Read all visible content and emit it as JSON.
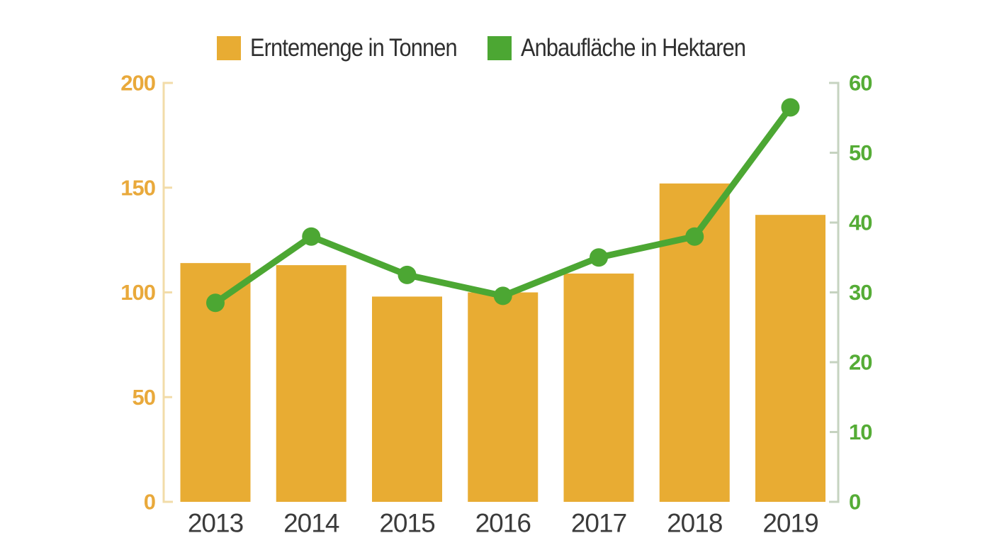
{
  "legend": {
    "items": [
      {
        "label": "Erntemenge in Tonnen",
        "color": "#E8AC33"
      },
      {
        "label": "Anbaufläche in Hektaren",
        "color": "#4CA733"
      }
    ]
  },
  "chart_data": {
    "type": "bar",
    "subtype": "bar+line dual axis",
    "categories": [
      "2013",
      "2014",
      "2015",
      "2016",
      "2017",
      "2018",
      "2019"
    ],
    "series": [
      {
        "name": "Erntemenge in Tonnen",
        "type": "bar",
        "axis": "left",
        "color": "#E8AC33",
        "values": [
          114,
          113,
          98,
          100,
          109,
          152,
          137
        ]
      },
      {
        "name": "Anbaufläche in Hektaren",
        "type": "line",
        "axis": "right",
        "color": "#4CA733",
        "values": [
          28.5,
          38,
          32.5,
          29.5,
          35,
          38,
          56.5
        ]
      }
    ],
    "left_axis": {
      "ticks": [
        0,
        50,
        100,
        150,
        200
      ],
      "range": [
        0,
        200
      ],
      "label_color": "#E9A93B",
      "line_color": "#F2DCA9"
    },
    "right_axis": {
      "ticks": [
        0,
        10,
        20,
        30,
        40,
        50,
        60
      ],
      "range": [
        0,
        60
      ],
      "label_color": "#55AC36",
      "line_color": "#C6D3C0"
    },
    "x_axis": {
      "label_color": "#3B3B3B"
    },
    "grid": false,
    "legend_position": "top",
    "title": ""
  }
}
